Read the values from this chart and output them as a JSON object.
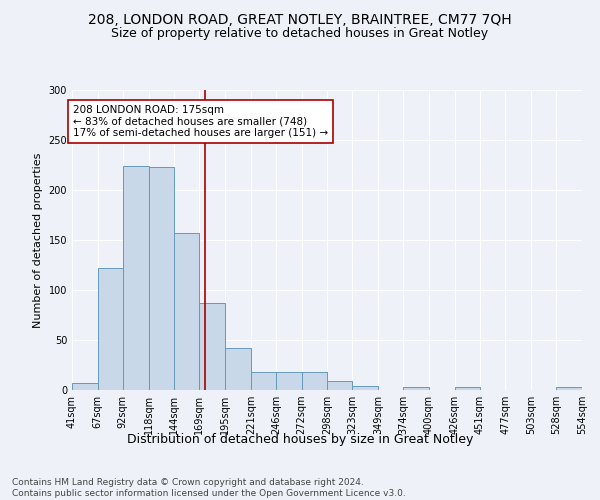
{
  "title1": "208, LONDON ROAD, GREAT NOTLEY, BRAINTREE, CM77 7QH",
  "title2": "Size of property relative to detached houses in Great Notley",
  "xlabel": "Distribution of detached houses by size in Great Notley",
  "ylabel": "Number of detached properties",
  "footer1": "Contains HM Land Registry data © Crown copyright and database right 2024.",
  "footer2": "Contains public sector information licensed under the Open Government Licence v3.0.",
  "annotation_line1": "208 LONDON ROAD: 175sqm",
  "annotation_line2": "← 83% of detached houses are smaller (748)",
  "annotation_line3": "17% of semi-detached houses are larger (151) →",
  "bar_edges": [
    41,
    67,
    92,
    118,
    144,
    169,
    195,
    221,
    246,
    272,
    298,
    323,
    349,
    374,
    400,
    426,
    451,
    477,
    503,
    528,
    554
  ],
  "bar_heights": [
    7,
    122,
    224,
    223,
    157,
    87,
    42,
    18,
    18,
    18,
    9,
    4,
    0,
    3,
    0,
    3,
    0,
    0,
    0,
    3
  ],
  "bar_color": "#c8d8e8",
  "bar_edge_color": "#6699bb",
  "ref_line_x": 175,
  "ref_line_color": "#aa0000",
  "annotation_box_color": "#ffffff",
  "annotation_box_edge": "#aa0000",
  "ylim": [
    0,
    300
  ],
  "yticks": [
    0,
    50,
    100,
    150,
    200,
    250,
    300
  ],
  "background_color": "#eef2f8",
  "grid_color": "#ffffff",
  "title_fontsize": 10,
  "subtitle_fontsize": 9,
  "ylabel_fontsize": 8,
  "xlabel_fontsize": 9,
  "tick_fontsize": 7,
  "footer_fontsize": 6.5
}
